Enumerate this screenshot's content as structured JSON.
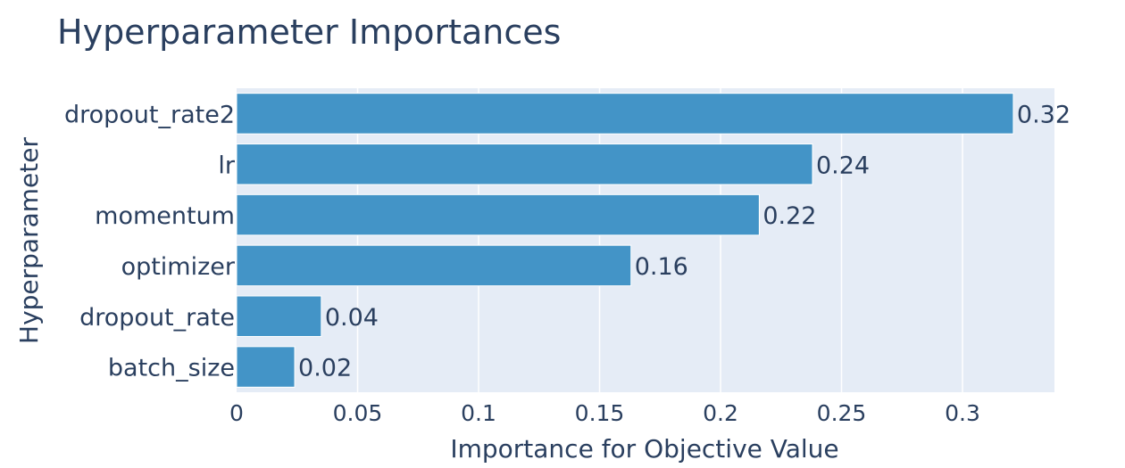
{
  "colors": {
    "bar": "#4394c7",
    "plot_background": "#e5ecf6",
    "gridline": "#ffffff",
    "text": "#2a3f5f"
  },
  "chart_data": {
    "type": "bar",
    "orientation": "horizontal",
    "title": "Hyperparameter Importances",
    "xlabel": "Importance for Objective Value",
    "ylabel": "Hyperparameter",
    "categories": [
      "dropout_rate2",
      "lr",
      "momentum",
      "optimizer",
      "dropout_rate",
      "batch_size"
    ],
    "values": [
      0.321,
      0.238,
      0.216,
      0.163,
      0.035,
      0.024
    ],
    "value_labels": [
      "0.32",
      "0.24",
      "0.22",
      "0.16",
      "0.04",
      "0.02"
    ],
    "x_ticks": [
      0,
      0.05,
      0.1,
      0.15,
      0.2,
      0.25,
      0.3
    ],
    "x_tick_labels": [
      "0",
      "0.05",
      "0.1",
      "0.15",
      "0.2",
      "0.25",
      "0.3"
    ],
    "xlim": [
      0,
      0.338
    ],
    "grid": true,
    "legend": false
  }
}
